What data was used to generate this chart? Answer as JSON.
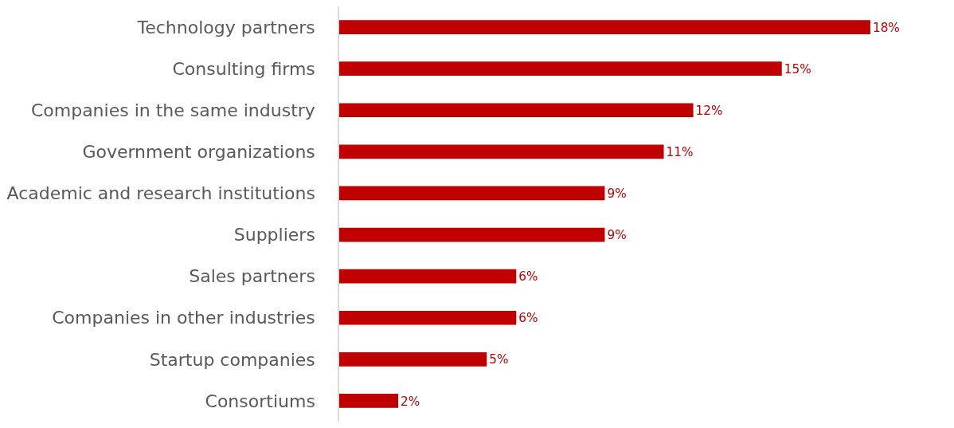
{
  "chart_data": {
    "type": "bar",
    "orientation": "horizontal",
    "categories": [
      "Technology partners",
      "Consulting firms",
      "Companies in the same industry",
      "Government organizations",
      "Academic and research institutions",
      "Suppliers",
      "Sales partners",
      "Companies in other industries",
      "Startup companies",
      "Consortiums"
    ],
    "values": [
      18,
      15,
      12,
      11,
      9,
      9,
      6,
      6,
      5,
      2
    ],
    "value_labels": [
      "18%",
      "15%",
      "12%",
      "11%",
      "9%",
      "9%",
      "6%",
      "6%",
      "5%",
      "2%"
    ],
    "color": "#c00000",
    "tick_labels": "y"
  }
}
